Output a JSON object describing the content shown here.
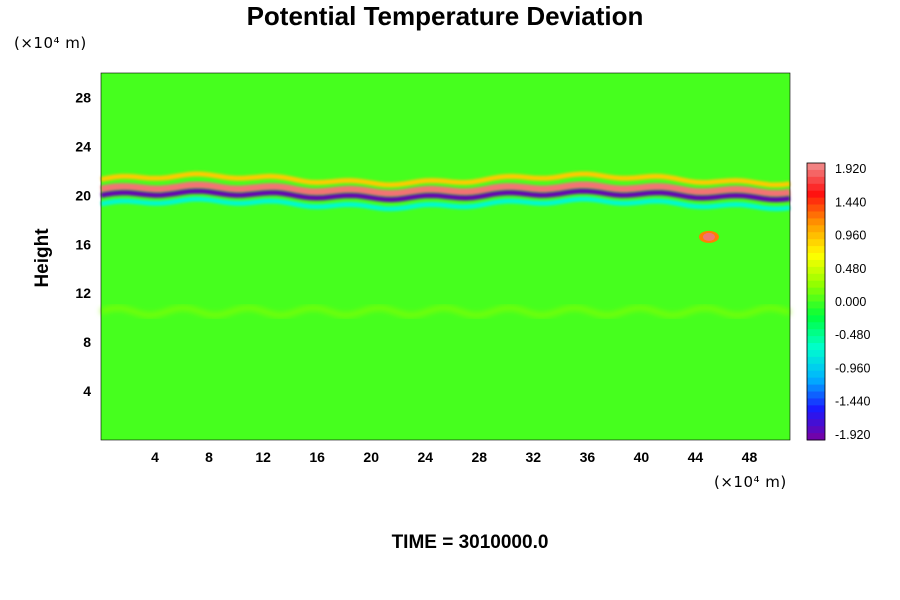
{
  "chart_data": {
    "type": "heatmap",
    "title": "Potential Temperature Deviation",
    "ylabel": "Height",
    "y_unit": "(×10⁴ m)",
    "x_unit": "(×10⁴ m)",
    "annotation": "TIME = 3010000.0",
    "xlim": [
      0,
      51
    ],
    "ylim": [
      0,
      30
    ],
    "x_ticks": [
      "4",
      "8",
      "12",
      "16",
      "20",
      "24",
      "28",
      "32",
      "36",
      "40",
      "44",
      "48"
    ],
    "y_ticks": [
      "4",
      "8",
      "12",
      "16",
      "20",
      "24",
      "28"
    ],
    "colorbar": {
      "min": -2.0,
      "max": 2.0,
      "ticks": [
        "1.920",
        "1.440",
        "0.960",
        "0.480",
        "0.000",
        "-0.480",
        "-0.960",
        "-1.440",
        "-1.920"
      ],
      "tick_values": [
        1.92,
        1.44,
        0.96,
        0.48,
        0.0,
        -0.48,
        -0.96,
        -1.44,
        -1.92
      ],
      "levels": 40,
      "colormap": [
        "#7b00a0",
        "#1a1aff",
        "#00b4ff",
        "#00ffcc",
        "#00ff3c",
        "#8cff00",
        "#ffff00",
        "#ff9a00",
        "#ff1010",
        "#f09090"
      ]
    },
    "background_value": 0.0,
    "features": [
      {
        "x": [
          0,
          51
        ],
        "y": 20.5,
        "value": 1.9,
        "description": "warm band"
      },
      {
        "x": [
          0,
          51
        ],
        "y": 20.0,
        "value": -1.9,
        "description": "cold band"
      },
      {
        "x": [
          0,
          51
        ],
        "y": 21.3,
        "value": 0.9,
        "description": "upper warm layer"
      },
      {
        "x": [
          0,
          51
        ],
        "y": 19.3,
        "value": -0.7,
        "description": "lower cold layer"
      },
      {
        "x": 45,
        "y": 16.6,
        "value": 1.9,
        "description": "warm patch"
      },
      {
        "x": [
          0,
          51
        ],
        "y": 10.5,
        "value": 0.2,
        "description": "tropopause perturbation"
      }
    ]
  }
}
